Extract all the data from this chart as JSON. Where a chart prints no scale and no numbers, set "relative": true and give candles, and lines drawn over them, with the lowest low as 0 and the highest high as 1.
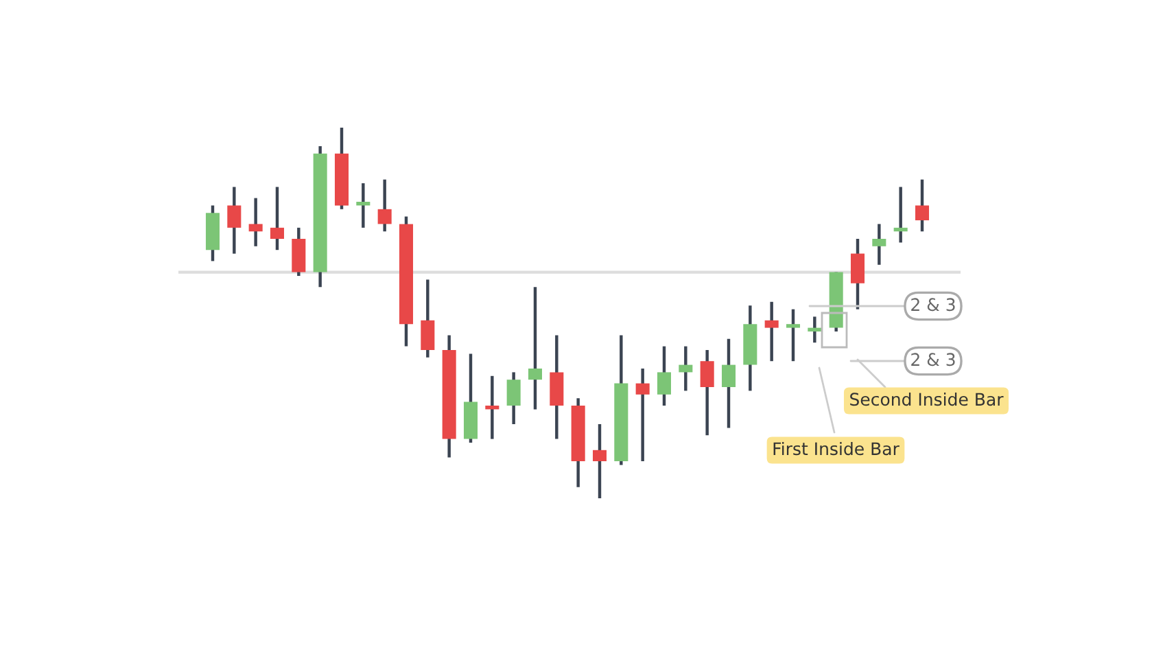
{
  "chart_data": {
    "type": "candlestick",
    "relative": true,
    "categories": [
      null,
      null,
      null,
      null,
      null,
      null,
      null,
      null,
      null,
      null,
      null,
      null,
      null,
      null,
      null,
      null,
      null,
      null,
      null,
      null,
      null,
      null,
      null,
      null,
      null,
      null,
      null,
      null,
      null,
      null,
      null,
      null,
      null,
      null
    ],
    "ohlc": [
      [
        0.67,
        0.79,
        0.64,
        0.77
      ],
      [
        0.79,
        0.84,
        0.66,
        0.73
      ],
      [
        0.74,
        0.81,
        0.68,
        0.72
      ],
      [
        0.73,
        0.84,
        0.67,
        0.7
      ],
      [
        0.7,
        0.73,
        0.6,
        0.61
      ],
      [
        0.61,
        0.95,
        0.57,
        0.93
      ],
      [
        0.93,
        1.0,
        0.78,
        0.79
      ],
      [
        0.79,
        0.85,
        0.73,
        0.8
      ],
      [
        0.78,
        0.86,
        0.72,
        0.74
      ],
      [
        0.74,
        0.76,
        0.41,
        0.47
      ],
      [
        0.48,
        0.59,
        0.38,
        0.4
      ],
      [
        0.4,
        0.44,
        0.11,
        0.16
      ],
      [
        0.16,
        0.39,
        0.15,
        0.26
      ],
      [
        0.25,
        0.33,
        0.16,
        0.24
      ],
      [
        0.25,
        0.34,
        0.2,
        0.32
      ],
      [
        0.32,
        0.57,
        0.24,
        0.35
      ],
      [
        0.34,
        0.44,
        0.16,
        0.25
      ],
      [
        0.25,
        0.27,
        0.03,
        0.1
      ],
      [
        0.13,
        0.2,
        0.0,
        0.1
      ],
      [
        0.1,
        0.44,
        0.09,
        0.31
      ],
      [
        0.31,
        0.35,
        0.1,
        0.28
      ],
      [
        0.28,
        0.41,
        0.25,
        0.34
      ],
      [
        0.34,
        0.41,
        0.29,
        0.36
      ],
      [
        0.37,
        0.4,
        0.17,
        0.3
      ],
      [
        0.3,
        0.43,
        0.19,
        0.36
      ],
      [
        0.36,
        0.52,
        0.29,
        0.47
      ],
      [
        0.48,
        0.53,
        0.37,
        0.46
      ],
      [
        0.46,
        0.51,
        0.37,
        0.47
      ],
      [
        0.45,
        0.49,
        0.42,
        0.46
      ],
      [
        0.46,
        0.61,
        0.45,
        0.61
      ],
      [
        0.66,
        0.7,
        0.51,
        0.58
      ],
      [
        0.68,
        0.74,
        0.63,
        0.7
      ],
      [
        0.72,
        0.84,
        0.69,
        0.73
      ],
      [
        0.79,
        0.86,
        0.72,
        0.75
      ]
    ],
    "colors": [
      "#7cc576",
      "#e84848",
      "#e84848",
      "#e84848",
      "#e84848",
      "#7cc576",
      "#e84848",
      "#7cc576",
      "#e84848",
      "#e84848",
      "#e84848",
      "#e84848",
      "#7cc576",
      "#e84848",
      "#7cc576",
      "#7cc576",
      "#e84848",
      "#e84848",
      "#e84848",
      "#7cc576",
      "#e84848",
      "#7cc576",
      "#7cc576",
      "#e84848",
      "#7cc576",
      "#7cc576",
      "#e84848",
      "#7cc576",
      "#7cc576",
      "#7cc576",
      "#e84848",
      "#7cc576",
      "#7cc576",
      "#e84848"
    ],
    "ref_lines": [
      {
        "axis": "y",
        "value": 0.61,
        "color": "#dddddd"
      }
    ],
    "annotations": [
      "2 & 3",
      "2 & 3",
      "Second Inside Bar",
      "First Inside Bar"
    ]
  }
}
